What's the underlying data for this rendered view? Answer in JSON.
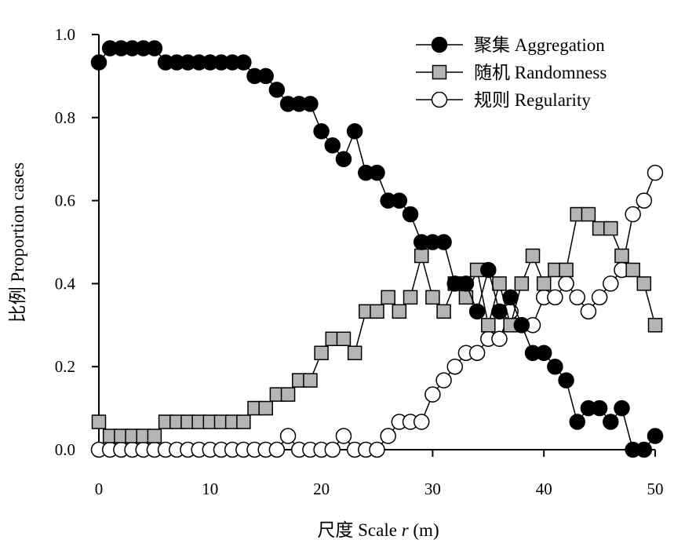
{
  "chart_data": {
    "type": "line",
    "title": "",
    "xlabel_prefix": "尺度 Scale ",
    "xlabel_var": "r",
    "xlabel_suffix": " (m)",
    "ylabel": "比例 Proportion cases",
    "xlim": [
      0,
      50
    ],
    "ylim": [
      0,
      1.0
    ],
    "xticks": [
      0,
      10,
      20,
      30,
      40,
      50
    ],
    "yticks": [
      0.0,
      0.2,
      0.4,
      0.6,
      0.8,
      1.0
    ],
    "xtick_labels": [
      "0",
      "10",
      "20",
      "30",
      "40",
      "50"
    ],
    "ytick_labels": [
      "0.0",
      "0.2",
      "0.4",
      "0.6",
      "0.8",
      "1.0"
    ],
    "grid": false,
    "legend_position": "top-right",
    "x": [
      0,
      1,
      2,
      3,
      4,
      5,
      6,
      7,
      8,
      9,
      10,
      11,
      12,
      13,
      14,
      15,
      16,
      17,
      18,
      19,
      20,
      21,
      22,
      23,
      24,
      25,
      26,
      27,
      28,
      29,
      30,
      31,
      32,
      33,
      34,
      35,
      36,
      37,
      38,
      39,
      40,
      41,
      42,
      43,
      44,
      45,
      46,
      47,
      48,
      49,
      50
    ],
    "series": [
      {
        "name": "聚集 Aggregation",
        "marker": "circle-filled",
        "color": "#000000",
        "fill": "#000000",
        "values": [
          0.933,
          0.967,
          0.967,
          0.967,
          0.967,
          0.967,
          0.933,
          0.933,
          0.933,
          0.933,
          0.933,
          0.933,
          0.933,
          0.933,
          0.9,
          0.9,
          0.867,
          0.833,
          0.833,
          0.833,
          0.767,
          0.733,
          0.7,
          0.767,
          0.667,
          0.667,
          0.6,
          0.6,
          0.567,
          0.5,
          0.5,
          0.5,
          0.4,
          0.4,
          0.333,
          0.433,
          0.333,
          0.367,
          0.3,
          0.233,
          0.233,
          0.2,
          0.167,
          0.067,
          0.1,
          0.1,
          0.067,
          0.1,
          0.0,
          0.0,
          0.033
        ]
      },
      {
        "name": "随机 Randomness",
        "marker": "square",
        "color": "#000000",
        "fill": "#b4b4b4",
        "values": [
          0.067,
          0.033,
          0.033,
          0.033,
          0.033,
          0.033,
          0.067,
          0.067,
          0.067,
          0.067,
          0.067,
          0.067,
          0.067,
          0.067,
          0.1,
          0.1,
          0.133,
          0.133,
          0.167,
          0.167,
          0.233,
          0.267,
          0.267,
          0.233,
          0.333,
          0.333,
          0.367,
          0.333,
          0.367,
          0.467,
          0.367,
          0.333,
          0.4,
          0.367,
          0.433,
          0.3,
          0.4,
          0.3,
          0.4,
          0.467,
          0.4,
          0.433,
          0.433,
          0.567,
          0.567,
          0.533,
          0.533,
          0.467,
          0.433,
          0.4,
          0.3
        ]
      },
      {
        "name": "规则 Regularity",
        "marker": "circle-open",
        "color": "#000000",
        "fill": "#ffffff",
        "values": [
          0.0,
          0.0,
          0.0,
          0.0,
          0.0,
          0.0,
          0.0,
          0.0,
          0.0,
          0.0,
          0.0,
          0.0,
          0.0,
          0.0,
          0.0,
          0.0,
          0.0,
          0.033,
          0.0,
          0.0,
          0.0,
          0.0,
          0.033,
          0.0,
          0.0,
          0.0,
          0.033,
          0.067,
          0.067,
          0.067,
          0.133,
          0.167,
          0.2,
          0.233,
          0.233,
          0.267,
          0.267,
          0.333,
          0.3,
          0.3,
          0.367,
          0.367,
          0.4,
          0.367,
          0.333,
          0.367,
          0.4,
          0.433,
          0.567,
          0.6,
          0.667
        ]
      }
    ]
  }
}
